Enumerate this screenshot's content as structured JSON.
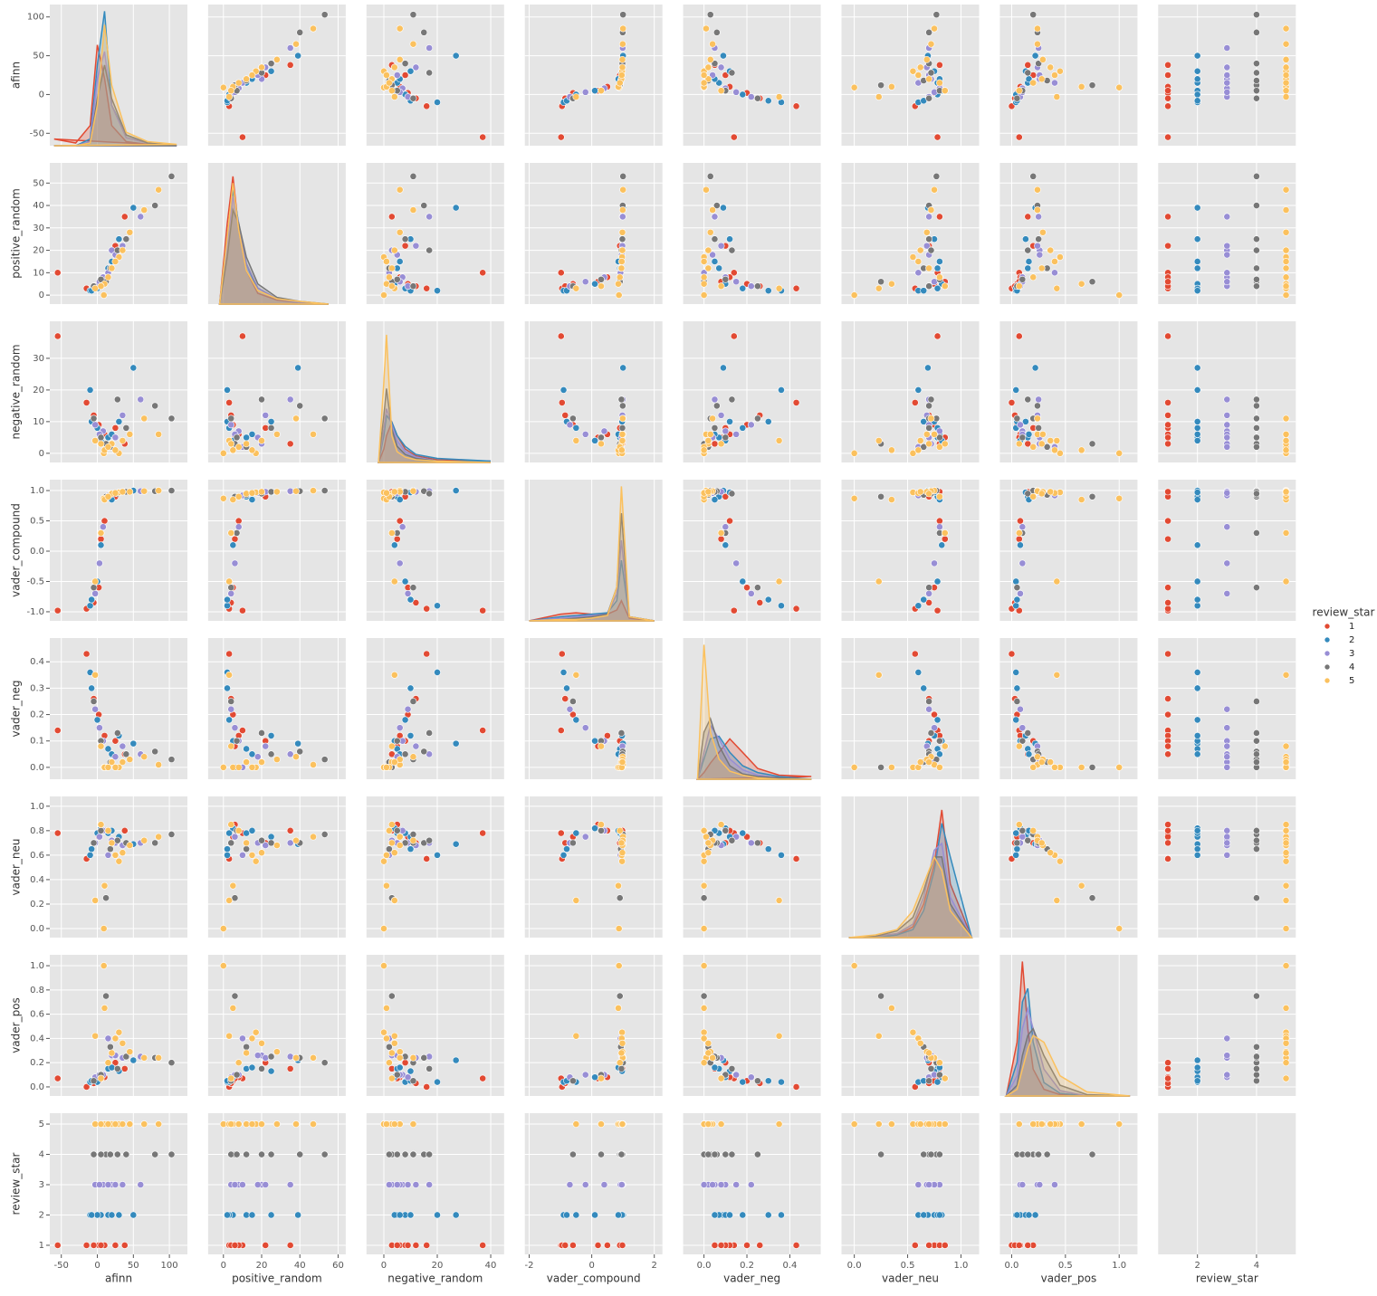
{
  "chart_data": {
    "type": "pairplot",
    "variables": [
      {
        "name": "afinn",
        "xlim": [
          -66,
          125
        ],
        "ylim": [
          -66,
          116
        ],
        "xticks": [
          -50,
          0,
          50,
          100
        ],
        "yticks": [
          -50,
          0,
          50,
          100
        ]
      },
      {
        "name": "positive_random",
        "xlim": [
          -8,
          64
        ],
        "ylim": [
          -4,
          59
        ],
        "xticks": [
          0,
          20,
          40,
          60
        ],
        "yticks": [
          0,
          10,
          20,
          30,
          40,
          50
        ]
      },
      {
        "name": "negative_random",
        "xlim": [
          -6.5,
          45
        ],
        "ylim": [
          -2.9,
          41.7
        ],
        "xticks": [
          0,
          20,
          40
        ],
        "yticks": [
          0,
          10,
          20,
          30
        ]
      },
      {
        "name": "vader_compound",
        "xlim": [
          -2.14,
          2.26
        ],
        "ylim": [
          -1.15,
          1.18
        ],
        "xticks": [
          -2,
          0,
          2
        ],
        "yticks": [
          {
            "value": -1,
            "label": "-1.0"
          },
          {
            "value": -0.5,
            "label": "-0.5"
          },
          {
            "value": 0,
            "label": "0.0"
          },
          {
            "value": 0.5,
            "label": "0.5"
          },
          {
            "value": 1,
            "label": "1.0"
          }
        ]
      },
      {
        "name": "vader_neg",
        "xlim": [
          -0.097,
          0.544
        ],
        "ylim": [
          -0.045,
          0.49
        ],
        "xticks": [
          {
            "value": 0,
            "label": "0.0"
          },
          {
            "value": 0.2,
            "label": "0.2"
          },
          {
            "value": 0.4,
            "label": "0.4"
          }
        ],
        "yticks": [
          {
            "value": 0,
            "label": "0.0"
          },
          0.1,
          0.2,
          0.3,
          0.4
        ]
      },
      {
        "name": "vader_neu",
        "xlim": [
          -0.12,
          1.17
        ],
        "ylim": [
          -0.074,
          1.08
        ],
        "xticks": [
          {
            "value": 0,
            "label": "0.0"
          },
          0.5,
          {
            "value": 1,
            "label": "1.0"
          }
        ],
        "yticks": [
          {
            "value": 0,
            "label": "0.0"
          },
          0.2,
          0.4,
          0.6,
          0.8,
          {
            "value": 1,
            "label": "1.0"
          }
        ]
      },
      {
        "name": "vader_pos",
        "xlim": [
          -0.11,
          1.17
        ],
        "ylim": [
          -0.075,
          1.09
        ],
        "xticks": [
          {
            "value": 0,
            "label": "0.0"
          },
          0.5,
          {
            "value": 1,
            "label": "1.0"
          }
        ],
        "yticks": [
          {
            "value": 0,
            "label": "0.0"
          },
          0.2,
          0.4,
          0.6,
          0.8,
          {
            "value": 1,
            "label": "1.0"
          }
        ]
      },
      {
        "name": "review_star",
        "xlim": [
          0.67,
          5.33
        ],
        "ylim": [
          0.7,
          5.36
        ],
        "xticks": [
          2,
          4
        ],
        "yticks": [
          1,
          2,
          3,
          4,
          5
        ]
      }
    ],
    "hue": {
      "title": "review_star",
      "levels": [
        1,
        2,
        3,
        4,
        5
      ],
      "colors": [
        "#e24a33",
        "#348abd",
        "#988ed5",
        "#777777",
        "#fbc15e"
      ]
    },
    "observations": [
      [
        -55,
        10,
        37,
        -0.98,
        0.14,
        0.78,
        0.07,
        1
      ],
      [
        -15,
        3,
        16,
        -0.95,
        0.43,
        0.57,
        0.0,
        1
      ],
      [
        10,
        8,
        6,
        0.5,
        0.12,
        0.8,
        0.08,
        1
      ],
      [
        25,
        22,
        8,
        0.9,
        0.1,
        0.7,
        0.2,
        1
      ],
      [
        2,
        5,
        9,
        -0.6,
        0.2,
        0.75,
        0.05,
        1
      ],
      [
        38,
        35,
        3,
        0.98,
        0.05,
        0.8,
        0.15,
        1
      ],
      [
        -5,
        4,
        12,
        -0.85,
        0.26,
        0.7,
        0.03,
        1
      ],
      [
        5,
        6,
        5,
        0.2,
        0.08,
        0.85,
        0.07,
        1
      ],
      [
        50,
        39,
        27,
        1.0,
        0.09,
        0.69,
        0.22,
        2
      ],
      [
        -10,
        2,
        20,
        -0.9,
        0.36,
        0.6,
        0.04,
        2
      ],
      [
        15,
        12,
        5,
        0.9,
        0.07,
        0.78,
        0.15,
        2
      ],
      [
        5,
        5,
        4,
        0.1,
        0.1,
        0.82,
        0.08,
        2
      ],
      [
        30,
        25,
        10,
        0.97,
        0.12,
        0.75,
        0.13,
        2
      ],
      [
        0,
        3,
        8,
        -0.5,
        0.18,
        0.78,
        0.04,
        2
      ],
      [
        -8,
        2,
        10,
        -0.8,
        0.3,
        0.65,
        0.05,
        2
      ],
      [
        20,
        15,
        6,
        0.85,
        0.05,
        0.8,
        0.16,
        2
      ],
      [
        60,
        35,
        17,
        0.99,
        0.05,
        0.7,
        0.25,
        3
      ],
      [
        20,
        20,
        3,
        0.95,
        0.02,
        0.72,
        0.26,
        3
      ],
      [
        8,
        8,
        7,
        0.4,
        0.1,
        0.8,
        0.1,
        3
      ],
      [
        -3,
        4,
        9,
        -0.7,
        0.22,
        0.7,
        0.08,
        3
      ],
      [
        35,
        22,
        12,
        0.98,
        0.08,
        0.68,
        0.24,
        3
      ],
      [
        15,
        10,
        2,
        0.92,
        0.0,
        0.6,
        0.4,
        3
      ],
      [
        3,
        6,
        6,
        -0.2,
        0.15,
        0.75,
        0.1,
        3
      ],
      [
        25,
        18,
        5,
        0.96,
        0.04,
        0.7,
        0.26,
        3
      ],
      [
        103,
        53,
        11,
        1.0,
        0.03,
        0.77,
        0.2,
        4
      ],
      [
        80,
        40,
        15,
        0.99,
        0.06,
        0.7,
        0.24,
        4
      ],
      [
        12,
        6,
        3,
        0.9,
        0.0,
        0.25,
        0.75,
        4
      ],
      [
        40,
        25,
        8,
        0.98,
        0.05,
        0.7,
        0.25,
        4
      ],
      [
        -5,
        4,
        11,
        -0.6,
        0.25,
        0.7,
        0.05,
        4
      ],
      [
        18,
        12,
        2,
        0.93,
        0.02,
        0.65,
        0.33,
        4
      ],
      [
        5,
        7,
        5,
        0.3,
        0.1,
        0.8,
        0.1,
        4
      ],
      [
        28,
        20,
        17,
        0.95,
        0.13,
        0.72,
        0.15,
        4
      ],
      [
        85,
        47,
        6,
        1.0,
        0.01,
        0.75,
        0.24,
        5
      ],
      [
        9,
        0,
        0,
        0.87,
        0.0,
        0.0,
        1.0,
        5
      ],
      [
        65,
        38,
        11,
        0.99,
        0.04,
        0.72,
        0.24,
        5
      ],
      [
        30,
        17,
        0,
        0.97,
        0.0,
        0.55,
        0.45,
        5
      ],
      [
        10,
        5,
        1,
        0.85,
        0.0,
        0.35,
        0.65,
        5
      ],
      [
        -3,
        3,
        4,
        -0.5,
        0.35,
        0.23,
        0.42,
        5
      ],
      [
        45,
        28,
        6,
        0.98,
        0.03,
        0.68,
        0.29,
        5
      ],
      [
        20,
        12,
        3,
        0.95,
        0.02,
        0.7,
        0.28,
        5
      ],
      [
        15,
        8,
        2,
        0.9,
        0.0,
        0.8,
        0.2,
        5
      ],
      [
        5,
        4,
        3,
        0.3,
        0.08,
        0.85,
        0.07,
        5
      ],
      [
        25,
        15,
        1,
        0.96,
        0.0,
        0.6,
        0.4,
        5
      ],
      [
        35,
        20,
        4,
        0.98,
        0.02,
        0.62,
        0.36,
        5
      ]
    ],
    "density_lim": [
      0,
      1.05
    ],
    "diagonal": [
      {
        "x": [
          -60,
          -30,
          -10,
          0,
          10,
          20,
          40,
          70,
          110
        ],
        "densities": [
          [
            0.05,
            0.02,
            0.15,
            0.75,
            0.5,
            0.15,
            0.03,
            0.01,
            0
          ],
          [
            0,
            0,
            0.05,
            0.6,
            1.0,
            0.3,
            0.08,
            0.02,
            0
          ],
          [
            0,
            0,
            0.03,
            0.5,
            0.7,
            0.3,
            0.06,
            0.02,
            0
          ],
          [
            0,
            0,
            0.02,
            0.35,
            0.6,
            0.35,
            0.08,
            0.02,
            0
          ],
          [
            0,
            0,
            0.02,
            0.3,
            0.9,
            0.45,
            0.1,
            0.03,
            0.01
          ]
        ]
      },
      {
        "x": [
          -2,
          2,
          5,
          8,
          12,
          18,
          28,
          40,
          55
        ],
        "densities": [
          [
            0,
            0.6,
            0.95,
            0.55,
            0.25,
            0.08,
            0.03,
            0.01,
            0
          ],
          [
            0,
            0.5,
            0.85,
            0.6,
            0.3,
            0.1,
            0.04,
            0.01,
            0
          ],
          [
            0,
            0.45,
            0.8,
            0.6,
            0.3,
            0.12,
            0.04,
            0.01,
            0
          ],
          [
            0,
            0.35,
            0.7,
            0.6,
            0.35,
            0.15,
            0.05,
            0.02,
            0
          ],
          [
            0,
            0.5,
            0.9,
            0.55,
            0.25,
            0.1,
            0.04,
            0.02,
            0
          ]
        ]
      },
      {
        "x": [
          -2,
          0,
          1,
          3,
          5,
          8,
          12,
          20,
          40
        ],
        "densities": [
          [
            0,
            0.1,
            0.2,
            0.3,
            0.2,
            0.1,
            0.05,
            0.02,
            0.01
          ],
          [
            0,
            0.2,
            0.35,
            0.3,
            0.2,
            0.12,
            0.06,
            0.03,
            0.01
          ],
          [
            0,
            0.25,
            0.4,
            0.28,
            0.16,
            0.08,
            0.04,
            0.01,
            0
          ],
          [
            0,
            0.35,
            0.55,
            0.25,
            0.12,
            0.06,
            0.03,
            0.01,
            0
          ],
          [
            0,
            0.6,
            0.95,
            0.2,
            0.08,
            0.04,
            0.02,
            0.01,
            0
          ]
        ]
      },
      {
        "x": [
          -2,
          -1,
          -0.5,
          0,
          0.5,
          0.8,
          0.95,
          1.2,
          2
        ],
        "densities": [
          [
            0,
            0.05,
            0.06,
            0.05,
            0.05,
            0.08,
            0.15,
            0.02,
            0
          ],
          [
            0,
            0.03,
            0.04,
            0.05,
            0.06,
            0.15,
            0.45,
            0.03,
            0
          ],
          [
            0,
            0.02,
            0.03,
            0.04,
            0.05,
            0.2,
            0.6,
            0.03,
            0
          ],
          [
            0,
            0.01,
            0.02,
            0.03,
            0.05,
            0.25,
            0.8,
            0.03,
            0
          ],
          [
            0,
            0.01,
            0.01,
            0.02,
            0.04,
            0.25,
            1.0,
            0.03,
            0
          ]
        ]
      },
      {
        "x": [
          -0.03,
          0,
          0.03,
          0.07,
          0.12,
          0.18,
          0.25,
          0.35,
          0.5
        ],
        "densities": [
          [
            0,
            0.05,
            0.12,
            0.2,
            0.3,
            0.2,
            0.08,
            0.03,
            0.02
          ],
          [
            0,
            0.15,
            0.3,
            0.32,
            0.2,
            0.1,
            0.05,
            0.02,
            0
          ],
          [
            0,
            0.2,
            0.4,
            0.3,
            0.15,
            0.07,
            0.03,
            0.01,
            0
          ],
          [
            0,
            0.35,
            0.45,
            0.25,
            0.1,
            0.04,
            0.02,
            0.01,
            0
          ],
          [
            0,
            1.0,
            0.35,
            0.15,
            0.06,
            0.03,
            0.01,
            0,
            0
          ]
        ]
      },
      {
        "x": [
          -0.05,
          0.2,
          0.4,
          0.55,
          0.65,
          0.75,
          0.82,
          0.9,
          1.1
        ],
        "densities": [
          [
            0,
            0,
            0.02,
            0.08,
            0.25,
            0.55,
            0.95,
            0.4,
            0
          ],
          [
            0,
            0,
            0.02,
            0.06,
            0.2,
            0.5,
            0.85,
            0.6,
            0
          ],
          [
            0,
            0.01,
            0.03,
            0.1,
            0.3,
            0.65,
            0.7,
            0.3,
            0
          ],
          [
            0,
            0.01,
            0.05,
            0.15,
            0.35,
            0.6,
            0.6,
            0.25,
            0
          ],
          [
            0,
            0.02,
            0.06,
            0.2,
            0.4,
            0.6,
            0.5,
            0.2,
            0
          ]
        ]
      },
      {
        "x": [
          -0.05,
          0.05,
          0.1,
          0.15,
          0.2,
          0.3,
          0.45,
          0.7,
          1.1
        ],
        "densities": [
          [
            0,
            0.4,
            1.0,
            0.5,
            0.2,
            0.05,
            0.01,
            0,
            0
          ],
          [
            0,
            0.25,
            0.7,
            0.8,
            0.4,
            0.1,
            0.02,
            0,
            0
          ],
          [
            0,
            0.15,
            0.5,
            0.65,
            0.5,
            0.2,
            0.04,
            0,
            0
          ],
          [
            0,
            0.08,
            0.3,
            0.45,
            0.5,
            0.3,
            0.08,
            0.01,
            0
          ],
          [
            0,
            0.05,
            0.2,
            0.35,
            0.45,
            0.4,
            0.15,
            0.03,
            0
          ]
        ]
      }
    ]
  }
}
